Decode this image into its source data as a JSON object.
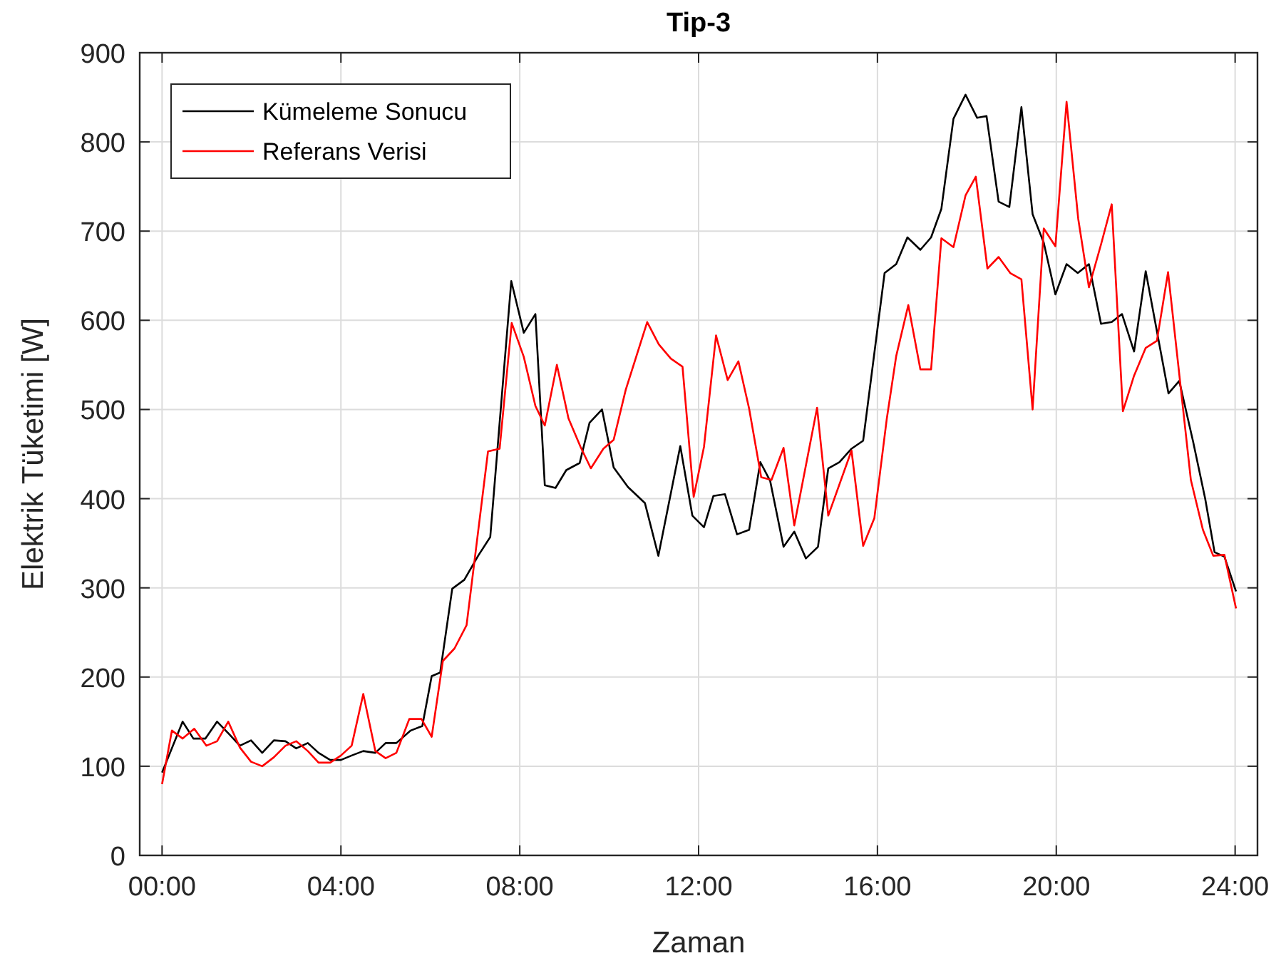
{
  "chart_data": {
    "type": "line",
    "title": "Tip-3",
    "xlabel": "Zaman",
    "ylabel": "Elektrik Tüketimi [W]",
    "xlim": [
      -0.5,
      24.5
    ],
    "ylim": [
      0,
      900
    ],
    "xticks": [
      {
        "value": 0,
        "label": "00:00"
      },
      {
        "value": 4,
        "label": "04:00"
      },
      {
        "value": 8,
        "label": "08:00"
      },
      {
        "value": 12,
        "label": "12:00"
      },
      {
        "value": 16,
        "label": "16:00"
      },
      {
        "value": 20,
        "label": "20:00"
      },
      {
        "value": 24,
        "label": "24:00"
      }
    ],
    "yticks": [
      0,
      100,
      200,
      300,
      400,
      500,
      600,
      700,
      800,
      900
    ],
    "grid": true,
    "legend": "top left",
    "line_style": "solid",
    "marker": "none",
    "series": [
      {
        "name": "Kümeleme Sonucu",
        "color": "#000000",
        "x": [
          0,
          0.46,
          0.7,
          0.97,
          1.23,
          1.5,
          1.74,
          1.99,
          2.24,
          2.5,
          2.76,
          3.0,
          3.26,
          3.5,
          3.76,
          4.0,
          4.24,
          4.5,
          4.77,
          5.0,
          5.24,
          5.56,
          5.82,
          6.03,
          6.22,
          6.49,
          6.76,
          7.07,
          7.34,
          7.81,
          8.09,
          8.35,
          8.56,
          8.8,
          9.04,
          9.34,
          9.56,
          9.84,
          10.1,
          10.42,
          10.8,
          11.1,
          11.59,
          11.86,
          12.12,
          12.33,
          12.59,
          12.86,
          13.13,
          13.38,
          13.6,
          13.9,
          14.14,
          14.4,
          14.67,
          14.9,
          15.15,
          15.42,
          15.68,
          16.16,
          16.42,
          16.67,
          16.96,
          17.2,
          17.43,
          17.7,
          17.97,
          18.23,
          18.44,
          18.71,
          18.95,
          19.22,
          19.47,
          19.72,
          19.98,
          20.23,
          20.48,
          20.73,
          21.0,
          21.24,
          21.47,
          21.74,
          22.0,
          22.51,
          22.75,
          23.06,
          23.33,
          23.54,
          23.76,
          24.02
        ],
        "values": [
          93,
          150,
          131,
          131,
          150,
          136,
          123,
          129,
          115,
          129,
          128,
          120,
          126,
          115,
          107,
          107,
          112,
          117,
          115,
          126,
          126,
          140,
          145,
          201,
          205,
          299,
          309,
          336,
          357,
          644,
          586,
          607,
          415,
          412,
          432,
          440,
          485,
          500,
          435,
          413,
          395,
          336,
          459,
          381,
          368,
          403,
          405,
          360,
          365,
          441,
          420,
          346,
          363,
          333,
          346,
          434,
          441,
          456,
          465,
          653,
          663,
          693,
          679,
          693,
          725,
          826,
          853,
          827,
          829,
          733,
          727,
          839,
          719,
          687,
          629,
          663,
          653,
          663,
          596,
          598,
          607,
          565,
          655,
          518,
          532,
          464,
          400,
          340,
          335,
          296
        ]
      },
      {
        "name": "Referans Verisi",
        "color": "#ff0000",
        "x": [
          0,
          0.22,
          0.46,
          0.72,
          0.99,
          1.23,
          1.48,
          1.74,
          1.99,
          2.24,
          2.5,
          2.76,
          3.0,
          3.26,
          3.5,
          3.76,
          4.0,
          4.24,
          4.5,
          4.77,
          5.0,
          5.24,
          5.53,
          5.8,
          6.03,
          6.28,
          6.54,
          6.81,
          7.29,
          7.55,
          7.82,
          8.09,
          8.35,
          8.56,
          8.83,
          9.09,
          9.36,
          9.59,
          9.87,
          10.1,
          10.37,
          10.85,
          11.11,
          11.38,
          11.64,
          11.89,
          12.12,
          12.39,
          12.65,
          12.89,
          13.13,
          13.4,
          13.63,
          13.9,
          14.14,
          14.65,
          14.9,
          15.42,
          15.68,
          15.93,
          16.21,
          16.42,
          16.69,
          16.96,
          17.2,
          17.43,
          17.7,
          17.97,
          18.2,
          18.46,
          18.71,
          18.97,
          19.22,
          19.47,
          19.72,
          19.98,
          20.23,
          20.49,
          20.73,
          21.0,
          21.24,
          21.49,
          21.74,
          22.0,
          22.25,
          22.5,
          23.01,
          23.28,
          23.51,
          23.76,
          24.02
        ],
        "values": [
          80,
          140,
          131,
          142,
          123,
          128,
          150,
          121,
          105,
          100,
          110,
          123,
          128,
          117,
          104,
          104,
          112,
          123,
          181,
          117,
          109,
          115,
          153,
          153,
          133,
          218,
          232,
          258,
          453,
          456,
          597,
          559,
          504,
          482,
          550,
          490,
          458,
          434,
          456,
          466,
          522,
          598,
          573,
          557,
          548,
          402,
          458,
          583,
          533,
          554,
          501,
          424,
          421,
          457,
          370,
          502,
          381,
          454,
          347,
          378,
          490,
          560,
          617,
          545,
          545,
          692,
          682,
          740,
          761,
          658,
          671,
          653,
          646,
          500,
          703,
          683,
          845,
          714,
          637,
          685,
          730,
          498,
          538,
          569,
          577,
          654,
          421,
          365,
          336,
          337,
          277
        ]
      }
    ]
  }
}
